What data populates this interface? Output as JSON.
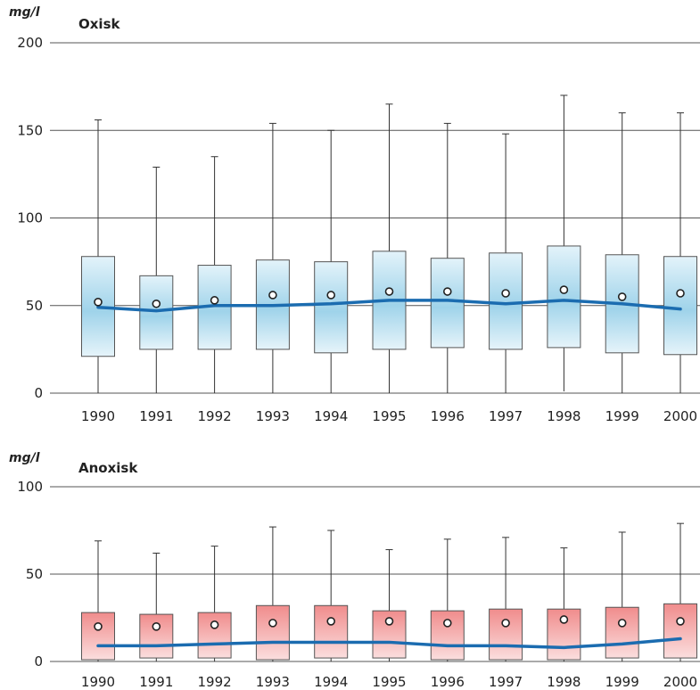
{
  "colors": {
    "oxic_box_top": "#bfe3f1",
    "oxic_box_mid": "#9dd3ea",
    "oxic_box_bottom": "#e8f5fb",
    "anoxic_box_top": "#f08c8c",
    "anoxic_box_bottom": "#fbd8d8",
    "median_line": "#1b6cb0",
    "grid": "#555555"
  },
  "chart_data": [
    {
      "type": "box",
      "title": "Oxisk",
      "ylabel": "mg/l",
      "ylim": [
        0,
        200
      ],
      "yticks": [
        0,
        50,
        100,
        150,
        200
      ],
      "grid": true,
      "categories": [
        "1990",
        "1991",
        "1992",
        "1993",
        "1994",
        "1995",
        "1996",
        "1997",
        "1998",
        "1999",
        "2000"
      ],
      "whisker_low": [
        0,
        0,
        0,
        0,
        0,
        0,
        0,
        0,
        1,
        0,
        0
      ],
      "q1": [
        21,
        25,
        25,
        25,
        23,
        25,
        26,
        25,
        26,
        23,
        22
      ],
      "q3": [
        78,
        67,
        73,
        76,
        75,
        81,
        77,
        80,
        84,
        79,
        78
      ],
      "whisker_high": [
        156,
        129,
        135,
        154,
        150,
        165,
        154,
        148,
        170,
        160,
        160
      ],
      "mean": [
        52,
        51,
        53,
        56,
        56,
        58,
        58,
        57,
        59,
        55,
        57
      ],
      "median": [
        49,
        47,
        50,
        50,
        51,
        53,
        53,
        51,
        53,
        51,
        48
      ]
    },
    {
      "type": "box",
      "title": "Anoxisk",
      "ylabel": "mg/l",
      "ylim": [
        0,
        100
      ],
      "yticks": [
        0,
        50,
        100
      ],
      "grid": true,
      "categories": [
        "1990",
        "1991",
        "1992",
        "1993",
        "1994",
        "1995",
        "1996",
        "1997",
        "1998",
        "1999",
        "2000"
      ],
      "whisker_low": [
        0,
        0,
        0,
        0,
        0,
        0,
        0,
        0,
        0,
        0,
        0
      ],
      "q1": [
        1,
        2,
        2,
        1,
        2,
        2,
        1,
        1,
        1,
        2,
        2
      ],
      "q3": [
        28,
        27,
        28,
        32,
        32,
        29,
        29,
        30,
        30,
        31,
        33
      ],
      "whisker_high": [
        69,
        62,
        66,
        77,
        75,
        64,
        70,
        71,
        65,
        74,
        79
      ],
      "mean": [
        20,
        20,
        21,
        22,
        23,
        23,
        22,
        22,
        24,
        22,
        23
      ],
      "median": [
        9,
        9,
        10,
        11,
        11,
        11,
        9,
        9,
        8,
        10,
        13
      ]
    }
  ]
}
